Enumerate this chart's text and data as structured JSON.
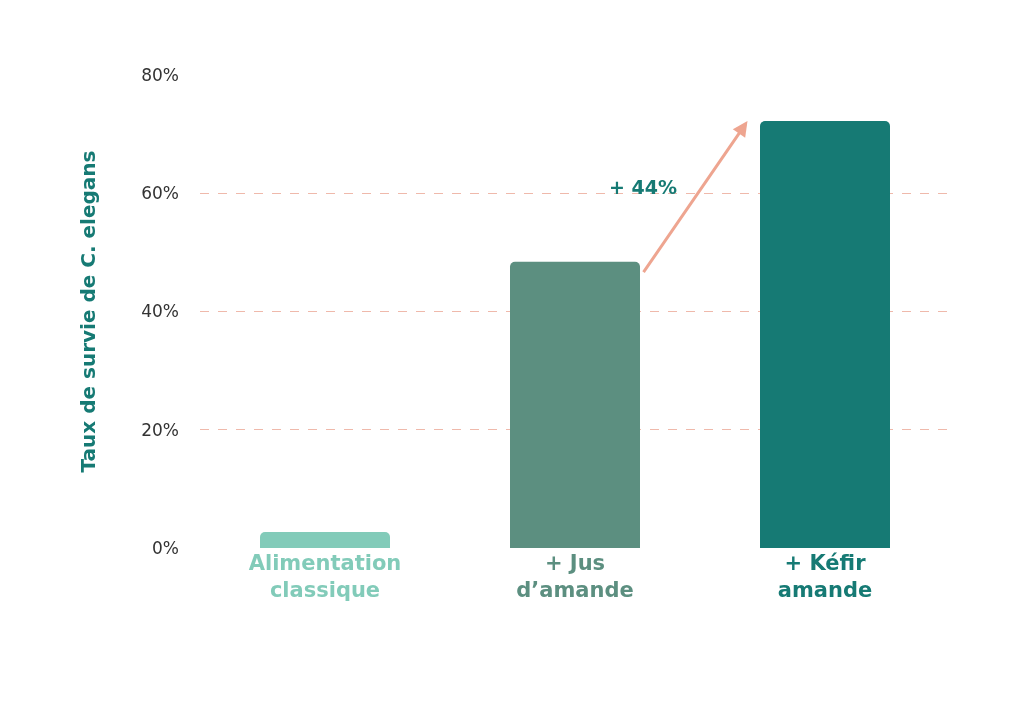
{
  "chart_data": {
    "type": "bar",
    "ylabel": "Taux de survie de C. elegans",
    "categories": [
      "Alimentation classique",
      "+ Jus d’amande",
      "+ Kéfir amande"
    ],
    "values": [
      2.7,
      48.4,
      72.2
    ],
    "colors": [
      "#82cbb9",
      "#5c8f80",
      "#167a74"
    ],
    "ylim": [
      0,
      80
    ],
    "yticks": [
      {
        "value": 0,
        "label": "0%"
      },
      {
        "value": 20,
        "label": "20%"
      },
      {
        "value": 40,
        "label": "40%"
      },
      {
        "value": 60,
        "label": "60%"
      },
      {
        "value": 80,
        "label": "80%"
      }
    ],
    "grid": "y",
    "annotations": [
      "+ 44%"
    ]
  }
}
